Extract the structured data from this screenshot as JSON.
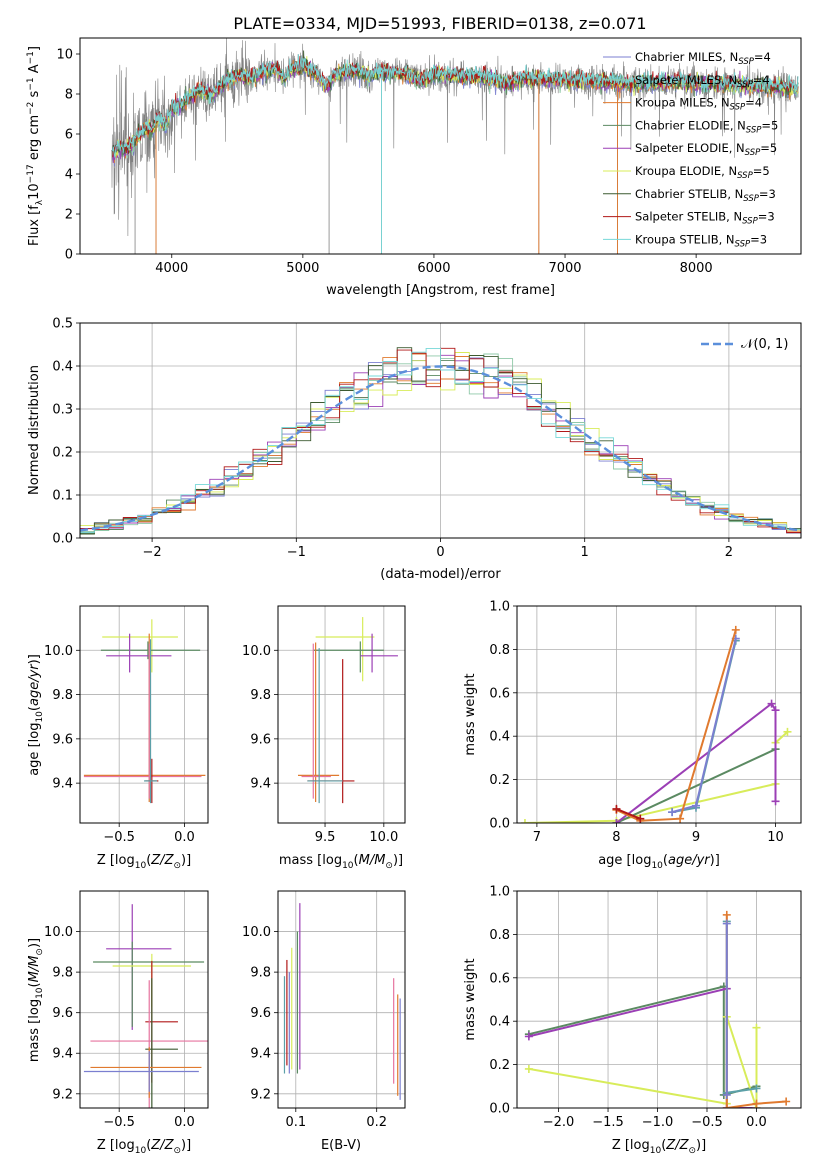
{
  "title": "PLATE=0334, MJD=51993, FIBERID=0138, z=0.071",
  "colors": {
    "chabrier_miles": "#7b7fd0",
    "salpeter_miles": "#8fc8a8",
    "kroupa_miles": "#e07a2f",
    "chabrier_elodie": "#5b8a62",
    "salpeter_elodie": "#9b3fb5",
    "kroupa_elodie": "#d8ec5a",
    "chabrier_stelib": "#3c5a30",
    "salpeter_stelib": "#b01818",
    "kroupa_stelib": "#76d8d8",
    "data": "#808080",
    "normal": "#5b8fdb",
    "pink": "#e6739f",
    "teal": "#5ca0a8"
  },
  "chart_data": [
    {
      "id": "spectrum",
      "type": "line",
      "title": "PLATE=0334, MJD=51993, FIBERID=0138, z=0.071",
      "xlabel": "wavelength [Angstrom, rest frame]",
      "ylabel_parts": [
        "Flux [f",
        "λ",
        "10",
        "−17",
        " erg cm",
        "−2",
        " s",
        "−1",
        " A",
        "−1",
        "]"
      ],
      "xlim": [
        3300,
        8800
      ],
      "ylim": [
        0,
        10.8
      ],
      "xticks": [
        4000,
        5000,
        6000,
        7000,
        8000
      ],
      "yticks": [
        0,
        2,
        4,
        6,
        8,
        10
      ],
      "grid": false,
      "legend_position": "right",
      "legend": [
        {
          "key": "chabrier_miles",
          "pre": "Chabrier MILES, N",
          "sub": "SSP",
          "post": "=4"
        },
        {
          "key": "salpeter_miles",
          "pre": "Salpeter MILES, N",
          "sub": "SSP",
          "post": "=4"
        },
        {
          "key": "kroupa_miles",
          "pre": "Kroupa MILES, N",
          "sub": "SSP",
          "post": "=4"
        },
        {
          "key": "chabrier_elodie",
          "pre": "Chabrier ELODIE, N",
          "sub": "SSP",
          "post": "=5"
        },
        {
          "key": "salpeter_elodie",
          "pre": "Salpeter ELODIE, N",
          "sub": "SSP",
          "post": "=5"
        },
        {
          "key": "kroupa_elodie",
          "pre": "Kroupa ELODIE, N",
          "sub": "SSP",
          "post": "=5"
        },
        {
          "key": "chabrier_stelib",
          "pre": "Chabrier STELIB, N",
          "sub": "SSP",
          "post": "=3"
        },
        {
          "key": "salpeter_stelib",
          "pre": "Salpeter STELIB, N",
          "sub": "SSP",
          "post": "=3"
        },
        {
          "key": "kroupa_stelib",
          "pre": "Kroupa STELIB, N",
          "sub": "SSP",
          "post": "=3"
        }
      ],
      "model_envelope": [
        [
          3550,
          5.0
        ],
        [
          3600,
          5.3
        ],
        [
          3650,
          5.2
        ],
        [
          3700,
          5.5
        ],
        [
          3750,
          5.9
        ],
        [
          3800,
          6.3
        ],
        [
          3850,
          6.2
        ],
        [
          3900,
          6.8
        ],
        [
          3950,
          6.4
        ],
        [
          4000,
          7.2
        ],
        [
          4100,
          7.6
        ],
        [
          4200,
          8.2
        ],
        [
          4300,
          7.9
        ],
        [
          4400,
          8.6
        ],
        [
          4500,
          8.9
        ],
        [
          4600,
          8.8
        ],
        [
          4700,
          9.1
        ],
        [
          4800,
          9.3
        ],
        [
          4860,
          8.7
        ],
        [
          4900,
          9.2
        ],
        [
          5000,
          9.4
        ],
        [
          5100,
          9.0
        ],
        [
          5175,
          8.4
        ],
        [
          5250,
          9.0
        ],
        [
          5400,
          9.2
        ],
        [
          5500,
          8.9
        ],
        [
          5600,
          9.1
        ],
        [
          5800,
          9.0
        ],
        [
          5900,
          8.6
        ],
        [
          6000,
          9.0
        ],
        [
          6200,
          8.9
        ],
        [
          6400,
          8.8
        ],
        [
          6563,
          8.5
        ],
        [
          6700,
          8.8
        ],
        [
          7000,
          8.7
        ],
        [
          7300,
          8.6
        ],
        [
          7500,
          8.5
        ],
        [
          7800,
          8.6
        ],
        [
          8100,
          8.5
        ],
        [
          8400,
          8.4
        ],
        [
          8700,
          8.3
        ]
      ],
      "data_absorption_spikes": [
        [
          3720,
          0.0
        ],
        [
          3880,
          0.0
        ],
        [
          5200,
          0.0
        ],
        [
          5600,
          0.0
        ],
        [
          6800,
          0.0
        ],
        [
          7400,
          0.0
        ]
      ]
    },
    {
      "id": "residuals",
      "type": "bar",
      "xlabel": "(data-model)/error",
      "ylabel": "Normed distribution",
      "xlim": [
        -2.5,
        2.5
      ],
      "ylim": [
        0,
        0.5
      ],
      "xticks": [
        -2,
        -1,
        0,
        1,
        2
      ],
      "yticks": [
        0.0,
        0.1,
        0.2,
        0.3,
        0.4,
        0.5
      ],
      "grid": true,
      "legend_position": "top-right",
      "legend_label": "𝒩(0, 1)",
      "bin_width": 0.1,
      "bin_start": -2.5
    },
    {
      "id": "age_vs_Z",
      "type": "scatter",
      "xlabel": "Z [log10(Z/Z⊙)]",
      "ylabel": "age  [log10(age/yr)]",
      "xlim": [
        -0.8,
        0.18
      ],
      "ylim": [
        9.22,
        10.2
      ],
      "xticks": [
        -0.5,
        0.0
      ],
      "yticks": [
        9.4,
        9.6,
        9.8,
        10.0
      ],
      "grid": true,
      "points": [
        {
          "key": "kroupa_elodie",
          "x": -0.25,
          "y": 10.06,
          "xerr": [
            0.38,
            0.2
          ],
          "yerr": [
            0.16,
            0.08
          ]
        },
        {
          "key": "chabrier_elodie",
          "x": -0.28,
          "y": 10.0,
          "xerr": [
            0.36,
            0.4
          ],
          "yerr": [
            0.04,
            0.04
          ]
        },
        {
          "key": "salpeter_elodie",
          "x": -0.42,
          "y": 9.975,
          "xerr": [
            0.18,
            0.32
          ],
          "yerr": [
            0.075,
            0.1
          ]
        },
        {
          "key": "kroupa_miles",
          "x": -0.27,
          "y": 9.435,
          "xerr": [
            0.5,
            0.43
          ],
          "yerr": [
            0.12,
            0.64
          ]
        },
        {
          "key": "pink",
          "x": -0.27,
          "y": 9.43,
          "xerr": [
            0.5,
            0.4
          ],
          "yerr": [
            0.1,
            0.6
          ]
        },
        {
          "key": "salpeter_stelib",
          "x": -0.25,
          "y": 9.41,
          "xerr": [
            0.05,
            0.05
          ],
          "yerr": [
            0.1,
            0.1
          ]
        },
        {
          "key": "teal",
          "x": -0.26,
          "y": 9.41,
          "xerr": [
            0.05,
            0.05
          ],
          "yerr": [
            0.1,
            0.64
          ]
        }
      ]
    },
    {
      "id": "age_vs_mass",
      "type": "scatter",
      "xlabel": "mass [log10(M/M⊙)]",
      "ylabel": "",
      "xlim": [
        9.1,
        10.18
      ],
      "ylim": [
        9.22,
        10.2
      ],
      "xticks": [
        9.5,
        10.0
      ],
      "yticks": [
        9.4,
        9.6,
        9.8,
        10.0
      ],
      "grid": true,
      "points": [
        {
          "key": "kroupa_elodie",
          "x": 9.82,
          "y": 10.06,
          "xerr": [
            0.4,
            0.1
          ],
          "yerr": [
            0.2,
            0.09
          ]
        },
        {
          "key": "chabrier_elodie",
          "x": 9.8,
          "y": 10.0,
          "xerr": [
            0.4,
            0.2
          ],
          "yerr": [
            0.1,
            0.04
          ]
        },
        {
          "key": "salpeter_elodie",
          "x": 9.9,
          "y": 9.975,
          "xerr": [
            0.1,
            0.22
          ],
          "yerr": [
            0.075,
            0.1
          ]
        },
        {
          "key": "kroupa_miles",
          "x": 9.42,
          "y": 9.435,
          "xerr": [
            0.15,
            0.2
          ],
          "yerr": [
            0.12,
            0.6
          ]
        },
        {
          "key": "pink",
          "x": 9.4,
          "y": 9.43,
          "xerr": [
            0.1,
            0.15
          ],
          "yerr": [
            0.1,
            0.6
          ]
        },
        {
          "key": "salpeter_stelib",
          "x": 9.65,
          "y": 9.41,
          "xerr": [
            0.3,
            0.1
          ],
          "yerr": [
            0.1,
            0.55
          ]
        },
        {
          "key": "teal",
          "x": 9.45,
          "y": 9.41,
          "xerr": [
            0.1,
            0.2
          ],
          "yerr": [
            0.1,
            0.6
          ]
        }
      ]
    },
    {
      "id": "weight_vs_age",
      "type": "line",
      "xlabel": "age  [log10(age/yr)]",
      "ylabel": "mass weight",
      "xlim": [
        6.75,
        10.32
      ],
      "ylim": [
        0,
        1
      ],
      "xticks": [
        7,
        8,
        9,
        10
      ],
      "yticks": [
        0.0,
        0.2,
        0.4,
        0.6,
        0.8,
        1.0
      ],
      "grid": true,
      "series": [
        {
          "key": "kroupa_elodie",
          "x": [
            6.85,
            8.0,
            10.0,
            10.0,
            10.15
          ],
          "y": [
            0.0,
            0.01,
            0.18,
            0.37,
            0.42
          ]
        },
        {
          "key": "chabrier_elodie",
          "x": [
            8.0,
            10.0,
            10.0
          ],
          "y": [
            0.0,
            0.34,
            0.34
          ]
        },
        {
          "key": "salpeter_elodie",
          "x": [
            8.0,
            9.95,
            10.0,
            10.0
          ],
          "y": [
            0.0,
            0.55,
            0.52,
            0.1
          ]
        },
        {
          "key": "teal",
          "x": [
            8.7,
            9.0,
            9.5
          ],
          "y": [
            0.05,
            0.07,
            0.84
          ]
        },
        {
          "key": "chabrier_miles",
          "x": [
            8.7,
            9.0,
            9.5
          ],
          "y": [
            0.05,
            0.08,
            0.85
          ]
        },
        {
          "key": "kroupa_miles",
          "x": [
            8.0,
            8.3,
            8.8,
            9.5
          ],
          "y": [
            0.06,
            0.01,
            0.02,
            0.89
          ]
        },
        {
          "key": "salpeter_stelib",
          "x": [
            8.0,
            8.3
          ],
          "y": [
            0.065,
            0.02
          ]
        }
      ]
    },
    {
      "id": "mass_vs_Z",
      "type": "scatter",
      "xlabel": "Z [log10(Z/Z⊙)]",
      "ylabel": "mass [log10(M/M⊙)]",
      "xlim": [
        -0.8,
        0.18
      ],
      "ylim": [
        9.13,
        10.2
      ],
      "xticks": [
        -0.5,
        0.0
      ],
      "yticks": [
        9.2,
        9.4,
        9.6,
        9.8,
        10.0
      ],
      "grid": true,
      "points": [
        {
          "key": "salpeter_elodie",
          "x": -0.4,
          "y": 9.915,
          "xerr": [
            0.2,
            0.3
          ],
          "yerr": [
            0.4,
            0.22
          ]
        },
        {
          "key": "chabrier_elodie",
          "x": -0.4,
          "y": 9.85,
          "xerr": [
            0.3,
            0.55
          ],
          "yerr": [
            0.32,
            0.1
          ]
        },
        {
          "key": "kroupa_elodie",
          "x": -0.25,
          "y": 9.83,
          "xerr": [
            0.3,
            0.3
          ],
          "yerr": [
            0.2,
            0.06
          ]
        },
        {
          "key": "salpeter_stelib",
          "x": -0.25,
          "y": 9.555,
          "xerr": [
            0.05,
            0.2
          ],
          "yerr": [
            0.3,
            0.3
          ]
        },
        {
          "key": "pink",
          "x": -0.27,
          "y": 9.46,
          "xerr": [
            0.45,
            0.5
          ],
          "yerr": [
            0.35,
            0.3
          ]
        },
        {
          "key": "chabrier_stelib",
          "x": -0.25,
          "y": 9.42,
          "xerr": [
            0.05,
            0.2
          ],
          "yerr": [
            0.35,
            0.35
          ]
        },
        {
          "key": "kroupa_miles",
          "x": -0.27,
          "y": 9.33,
          "xerr": [
            0.45,
            0.4
          ],
          "yerr": [
            0.15,
            0.1
          ]
        },
        {
          "key": "chabrier_miles",
          "x": -0.27,
          "y": 9.31,
          "xerr": [
            0.5,
            0.38
          ],
          "yerr": [
            0.1,
            0.1
          ]
        }
      ]
    },
    {
      "id": "mass_vs_ebv",
      "type": "scatter",
      "xlabel": "E(B-V)",
      "ylabel": "",
      "xlim": [
        0.078,
        0.235
      ],
      "ylim": [
        9.13,
        10.2
      ],
      "xticks": [
        0.1,
        0.2
      ],
      "yticks": [
        9.2,
        9.4,
        9.6,
        9.8,
        10.0
      ],
      "grid": true,
      "points": [
        {
          "key": "salpeter_elodie",
          "x": 0.105,
          "y": 9.72,
          "xerr": [
            0,
            0
          ],
          "yerr": [
            0.4,
            0.42
          ]
        },
        {
          "key": "kroupa_elodie",
          "x": 0.095,
          "y": 9.62,
          "xerr": [
            0,
            0
          ],
          "yerr": [
            0.3,
            0.3
          ]
        },
        {
          "key": "chabrier_elodie",
          "x": 0.102,
          "y": 9.65,
          "xerr": [
            0,
            0
          ],
          "yerr": [
            0.35,
            0.35
          ]
        },
        {
          "key": "salpeter_stelib",
          "x": 0.089,
          "y": 9.6,
          "xerr": [
            0,
            0
          ],
          "yerr": [
            0.26,
            0.26
          ]
        },
        {
          "key": "teal",
          "x": 0.086,
          "y": 9.54,
          "xerr": [
            0,
            0
          ],
          "yerr": [
            0.24,
            0.24
          ]
        },
        {
          "key": "chabrier_miles",
          "x": 0.092,
          "y": 9.55,
          "xerr": [
            0,
            0
          ],
          "yerr": [
            0.25,
            0.25
          ]
        },
        {
          "key": "pink",
          "x": 0.221,
          "y": 9.5,
          "xerr": [
            0,
            0
          ],
          "yerr": [
            0.25,
            0.27
          ]
        },
        {
          "key": "kroupa_miles",
          "x": 0.226,
          "y": 9.44,
          "xerr": [
            0,
            0
          ],
          "yerr": [
            0.25,
            0.25
          ]
        },
        {
          "key": "chabrier_miles",
          "x": 0.229,
          "y": 9.42,
          "xerr": [
            0,
            0
          ],
          "yerr": [
            0.25,
            0.25
          ]
        }
      ]
    },
    {
      "id": "weight_vs_Z",
      "type": "line",
      "xlabel": "Z [log10(Z/Z⊙)]",
      "ylabel": "mass weight",
      "xlim": [
        -2.42,
        0.45
      ],
      "ylim": [
        0,
        1
      ],
      "xticks": [
        -2.0,
        -1.5,
        -1.0,
        -0.5,
        0.0
      ],
      "yticks": [
        0.0,
        0.2,
        0.4,
        0.6,
        0.8,
        1.0
      ],
      "grid": true,
      "series": [
        {
          "key": "chabrier_elodie",
          "x": [
            -2.3,
            -0.33,
            -0.33,
            0.0
          ],
          "y": [
            0.34,
            0.56,
            0.06,
            0.1
          ]
        },
        {
          "key": "salpeter_elodie",
          "x": [
            -2.3,
            -0.3,
            -0.3,
            0.0
          ],
          "y": [
            0.33,
            0.55,
            0.0,
            0.0
          ]
        },
        {
          "key": "kroupa_elodie",
          "x": [
            -2.3,
            -0.3,
            -0.3,
            0.0,
            0.0
          ],
          "y": [
            0.18,
            0.02,
            0.42,
            0.0,
            0.37
          ]
        },
        {
          "key": "teal",
          "x": [
            -0.3,
            -0.3,
            0.0
          ],
          "y": [
            0.86,
            0.07,
            0.09
          ]
        },
        {
          "key": "kroupa_miles",
          "x": [
            -0.3,
            -0.3,
            0.0,
            0.3
          ],
          "y": [
            0.89,
            0.0,
            0.02,
            0.03
          ]
        },
        {
          "key": "chabrier_miles",
          "x": [
            -0.3,
            -0.3
          ],
          "y": [
            0.85,
            0.06
          ]
        }
      ]
    }
  ]
}
